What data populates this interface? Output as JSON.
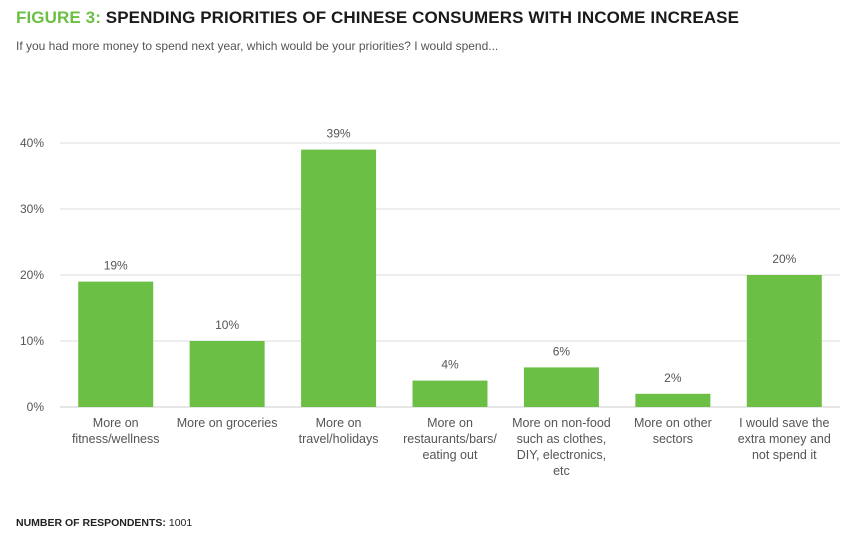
{
  "header": {
    "figure_label": "FIGURE 3:",
    "title": "SPENDING PRIORITIES OF CHINESE CONSUMERS WITH INCOME INCREASE",
    "subtitle": "If you had more money to spend next year, which would be your priorities? I would spend..."
  },
  "footer": {
    "respondents_label": "NUMBER OF RESPONDENTS:",
    "respondents_value": "1001"
  },
  "colors": {
    "bar": "#6cbf45",
    "title_accent": "#6cbf45",
    "grid": "#dddddd",
    "text": "#555555"
  },
  "chart_data": {
    "type": "bar",
    "title": "SPENDING PRIORITIES OF CHINESE CONSUMERS WITH INCOME INCREASE",
    "xlabel": "",
    "ylabel": "",
    "ylim": [
      0,
      40
    ],
    "yticks": [
      0,
      10,
      20,
      30,
      40
    ],
    "ytick_labels": [
      "0%",
      "10%",
      "20%",
      "30%",
      "40%"
    ],
    "grid": true,
    "categories": [
      [
        "More on",
        "fitness/wellness"
      ],
      [
        "More on groceries"
      ],
      [
        "More on",
        "travel/holidays"
      ],
      [
        "More on",
        "restaurants/bars/",
        "eating out"
      ],
      [
        "More on non-food",
        "such as clothes,",
        "DIY, electronics,",
        "etc"
      ],
      [
        "More on other",
        "sectors"
      ],
      [
        "I would save the",
        "extra money and",
        "not spend it"
      ]
    ],
    "values": [
      19,
      10,
      39,
      4,
      6,
      2,
      20
    ],
    "value_labels": [
      "19%",
      "10%",
      "39%",
      "4%",
      "6%",
      "2%",
      "20%"
    ]
  }
}
